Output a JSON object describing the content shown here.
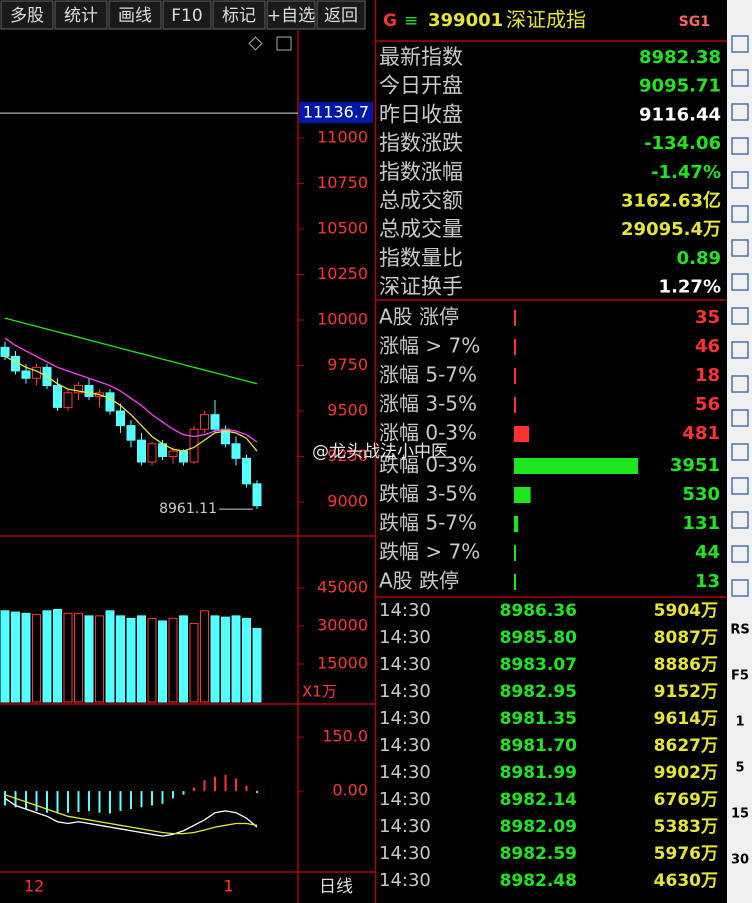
{
  "toolbar": [
    "多股",
    "统计",
    "画线",
    "F10",
    "标记",
    "+自选",
    "返回"
  ],
  "header": {
    "flag": "G",
    "menu": "≡",
    "code": "399001",
    "name": "深证成指",
    "badge": "SG1"
  },
  "stats": [
    {
      "label": "最新指数",
      "value": "8982.38",
      "color": "#1ee61e"
    },
    {
      "label": "今日开盘",
      "value": "9095.71",
      "color": "#1ee61e"
    },
    {
      "label": "昨日收盘",
      "value": "9116.44",
      "color": "#ffffff"
    },
    {
      "label": "指数涨跌",
      "value": "-134.06",
      "color": "#1ee61e"
    },
    {
      "label": "指数涨幅",
      "value": "-1.47%",
      "color": "#1ee61e"
    },
    {
      "label": "总成交额",
      "value": "3162.63亿",
      "color": "#e6e632"
    },
    {
      "label": "总成交量",
      "value": "29095.4万",
      "color": "#e6e632"
    },
    {
      "label": "指数量比",
      "value": "0.89",
      "color": "#1ee61e"
    },
    {
      "label": "深证换手",
      "value": "1.27%",
      "color": "#ffffff"
    }
  ],
  "breadth": [
    {
      "label": "A股 涨停",
      "value": 35,
      "color": "#ff3232"
    },
    {
      "label": "涨幅 > 7%",
      "value": 46,
      "color": "#ff3232"
    },
    {
      "label": "涨幅 5-7%",
      "value": 18,
      "color": "#ff3232"
    },
    {
      "label": "涨幅 3-5%",
      "value": 56,
      "color": "#ff3232"
    },
    {
      "label": "涨幅 0-3%",
      "value": 481,
      "color": "#ff3232"
    },
    {
      "label": "跌幅 0-3%",
      "value": 3951,
      "color": "#1ee61e"
    },
    {
      "label": "跌幅 3-5%",
      "value": 530,
      "color": "#1ee61e"
    },
    {
      "label": "跌幅 5-7%",
      "value": 131,
      "color": "#1ee61e"
    },
    {
      "label": "跌幅 > 7%",
      "value": 44,
      "color": "#1ee61e"
    },
    {
      "label": "A股 跌停",
      "value": 13,
      "color": "#1ee61e"
    }
  ],
  "ticks": [
    {
      "time": "14:30",
      "price": "8986.36",
      "volume": "5904万"
    },
    {
      "time": "14:30",
      "price": "8985.80",
      "volume": "8087万"
    },
    {
      "time": "14:30",
      "price": "8983.07",
      "volume": "8886万"
    },
    {
      "time": "14:30",
      "price": "8982.95",
      "volume": "9152万"
    },
    {
      "time": "14:30",
      "price": "8981.35",
      "volume": "9614万"
    },
    {
      "time": "14:30",
      "price": "8981.70",
      "volume": "8627万"
    },
    {
      "time": "14:30",
      "price": "8981.99",
      "volume": "9902万"
    },
    {
      "time": "14:30",
      "price": "8982.14",
      "volume": "6769万"
    },
    {
      "time": "14:30",
      "price": "8982.09",
      "volume": "5383万"
    },
    {
      "time": "14:30",
      "price": "8982.59",
      "volume": "5976万"
    },
    {
      "time": "14:30",
      "price": "8982.48",
      "volume": "4630万"
    }
  ],
  "side_labels": [
    "RS",
    "F5",
    "1",
    "5",
    "15",
    "30"
  ],
  "watermark": "@龙头战法小中医",
  "chart_data": {
    "type": "candlestick",
    "up_color": "#ff3232",
    "down_color": "#54ffff",
    "categories": [
      null,
      null,
      "12",
      null,
      null,
      null,
      null,
      null,
      null,
      null,
      null,
      null,
      null,
      null,
      null,
      null,
      null,
      null,
      null,
      null,
      null,
      "1",
      null,
      null,
      null
    ],
    "open": [
      9850,
      9800,
      9720,
      9680,
      9740,
      9640,
      9520,
      9600,
      9640,
      9580,
      9600,
      9500,
      9420,
      9340,
      9220,
      9320,
      9250,
      9280,
      9220,
      9400,
      9480,
      9400,
      9320,
      9240,
      9100
    ],
    "high": [
      9880,
      9830,
      9760,
      9760,
      9760,
      9680,
      9620,
      9660,
      9680,
      9620,
      9620,
      9540,
      9450,
      9380,
      9330,
      9340,
      9300,
      9290,
      9420,
      9500,
      9560,
      9420,
      9360,
      9260,
      9120
    ],
    "low": [
      9780,
      9700,
      9650,
      9640,
      9620,
      9500,
      9500,
      9560,
      9560,
      9520,
      9480,
      9380,
      9300,
      9200,
      9200,
      9230,
      9210,
      9200,
      9210,
      9380,
      9380,
      9300,
      9200,
      9080,
      8961.11
    ],
    "close": [
      9800,
      9720,
      9680,
      9740,
      9640,
      9520,
      9600,
      9640,
      9580,
      9600,
      9500,
      9420,
      9340,
      9220,
      9320,
      9250,
      9280,
      9220,
      9400,
      9480,
      9400,
      9320,
      9240,
      9100,
      8980
    ],
    "ylim": [
      8819,
      11582
    ],
    "yticks": [
      9000,
      9250,
      9500,
      9750,
      10000,
      10250,
      10500,
      10750,
      11000
    ],
    "marker": 11136.7,
    "low_annotation": 8961.11,
    "ma_lines": [
      {
        "color": "#1ee61e",
        "values": [
          10010,
          9995,
          9980,
          9965,
          9950,
          9935,
          9920,
          9905,
          9890,
          9875,
          9860,
          9845,
          9830,
          9815,
          9800,
          9785,
          9770,
          9755,
          9740,
          9725,
          9710,
          9695,
          9680,
          9665,
          9650
        ]
      },
      {
        "color": "#ff3cff",
        "values": [
          9900,
          9860,
          9830,
          9800,
          9770,
          9740,
          9720,
          9700,
          9680,
          9660,
          9640,
          9610,
          9570,
          9530,
          9480,
          9440,
          9400,
          9370,
          9360,
          9370,
          9390,
          9400,
          9390,
          9370,
          9330
        ]
      },
      {
        "color": "#e6e632",
        "values": [
          9800,
          9770,
          9740,
          9720,
          9690,
          9650,
          9620,
          9610,
          9600,
          9590,
          9570,
          9530,
          9480,
          9420,
          9360,
          9320,
          9290,
          9280,
          9300,
          9340,
          9380,
          9390,
          9380,
          9350,
          9280
        ]
      }
    ],
    "volume": {
      "values": [
        36000,
        35500,
        35000,
        34500,
        36000,
        36500,
        35000,
        35000,
        34000,
        34000,
        36000,
        34000,
        33000,
        34000,
        33000,
        32000,
        33000,
        34000,
        31000,
        36000,
        34000,
        33500,
        34000,
        33000,
        29000
      ],
      "ylim": [
        0,
        65130
      ],
      "yticks": [
        15000,
        30000,
        45000
      ],
      "unit": "X1万"
    },
    "macd": {
      "histogram": [
        -40,
        -45,
        -50,
        -55,
        -60,
        -62,
        -60,
        -58,
        -55,
        -60,
        -62,
        -55,
        -50,
        -45,
        -40,
        -35,
        -20,
        -10,
        10,
        30,
        40,
        45,
        35,
        15,
        -5
      ],
      "dif": [
        -20,
        -40,
        -50,
        -60,
        -70,
        -85,
        -90,
        -85,
        -90,
        -95,
        -100,
        -105,
        -110,
        -115,
        -120,
        -125,
        -120,
        -110,
        -95,
        -80,
        -60,
        -55,
        -60,
        -75,
        -100
      ],
      "dea": [
        -10,
        -20,
        -30,
        -40,
        -50,
        -60,
        -70,
        -75,
        -80,
        -85,
        -90,
        -95,
        -100,
        -105,
        -110,
        -115,
        -118,
        -118,
        -115,
        -108,
        -100,
        -95,
        -90,
        -90,
        -95
      ],
      "ylim": [
        -219,
        239
      ],
      "yticks": [
        {
          "value": 0,
          "label": "0.00"
        },
        {
          "value": 150,
          "label": "150.0"
        }
      ]
    },
    "period": "日线"
  }
}
